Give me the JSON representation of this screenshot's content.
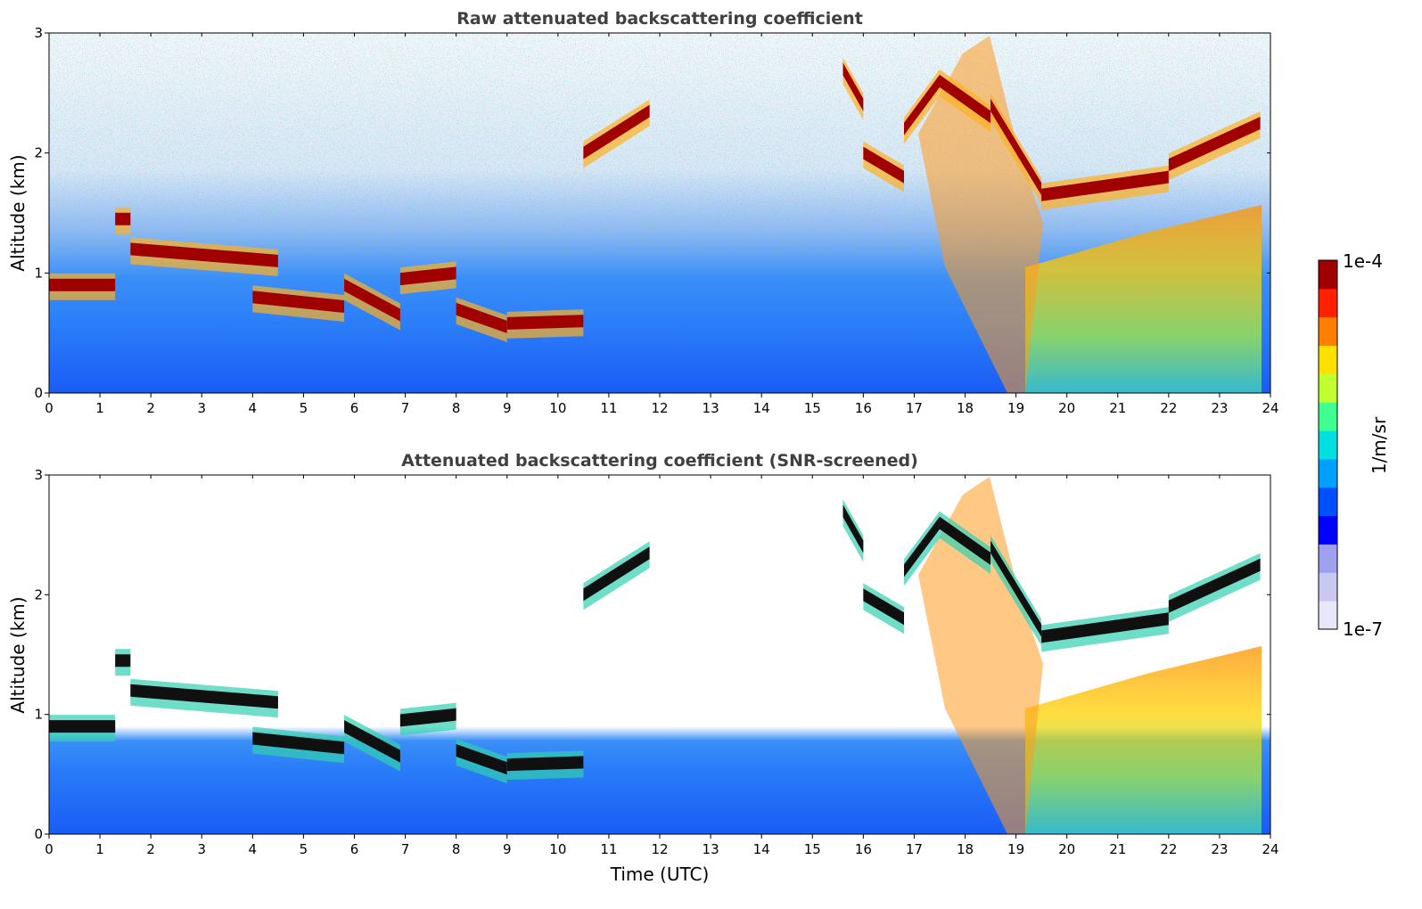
{
  "chart_data": [
    {
      "type": "heatmap",
      "title": "Raw attenuated backscattering coefficient",
      "xlabel": "",
      "ylabel": "Altitude (km)",
      "xlim": [
        0,
        24
      ],
      "ylim": [
        0,
        3
      ],
      "xticks": [
        "0",
        "1",
        "2",
        "3",
        "4",
        "5",
        "6",
        "7",
        "8",
        "9",
        "10",
        "11",
        "12",
        "13",
        "14",
        "15",
        "16",
        "17",
        "18",
        "19",
        "20",
        "21",
        "22",
        "23",
        "24"
      ],
      "yticks": [
        "0",
        "1",
        "2",
        "3"
      ],
      "screened": false,
      "layers": [
        {
          "x_start": 0.0,
          "x_end": 1.3,
          "altitude": [
            0.9,
            0.9
          ]
        },
        {
          "x_start": 1.3,
          "x_end": 1.6,
          "altitude": [
            1.45,
            1.45
          ]
        },
        {
          "x_start": 1.6,
          "x_end": 4.5,
          "altitude": [
            1.2,
            1.1
          ]
        },
        {
          "x_start": 4.0,
          "x_end": 5.8,
          "altitude": [
            0.8,
            0.72
          ]
        },
        {
          "x_start": 5.8,
          "x_end": 6.9,
          "altitude": [
            0.9,
            0.65
          ]
        },
        {
          "x_start": 6.9,
          "x_end": 8.0,
          "altitude": [
            0.95,
            1.0
          ]
        },
        {
          "x_start": 8.0,
          "x_end": 9.0,
          "altitude": [
            0.7,
            0.55
          ]
        },
        {
          "x_start": 9.0,
          "x_end": 10.5,
          "altitude": [
            0.58,
            0.6
          ]
        },
        {
          "x_start": 10.5,
          "x_end": 11.8,
          "altitude": [
            2.0,
            2.35
          ]
        },
        {
          "x_start": 15.6,
          "x_end": 16.0,
          "altitude": [
            2.7,
            2.4
          ]
        },
        {
          "x_start": 16.0,
          "x_end": 16.8,
          "altitude": [
            2.0,
            1.8
          ]
        },
        {
          "x_start": 16.8,
          "x_end": 17.5,
          "altitude": [
            2.2,
            2.6
          ]
        },
        {
          "x_start": 17.5,
          "x_end": 18.5,
          "altitude": [
            2.6,
            2.3
          ]
        },
        {
          "x_start": 18.5,
          "x_end": 19.5,
          "altitude": [
            2.4,
            1.7
          ]
        },
        {
          "x_start": 19.5,
          "x_end": 22.0,
          "altitude": [
            1.65,
            1.8
          ]
        },
        {
          "x_start": 22.0,
          "x_end": 23.8,
          "altitude": [
            1.9,
            2.25
          ]
        }
      ]
    },
    {
      "type": "heatmap",
      "title": "Attenuated backscattering coefficient (SNR-screened)",
      "xlabel": "Time (UTC)",
      "ylabel": "Altitude (km)",
      "xlim": [
        0,
        24
      ],
      "ylim": [
        0,
        3
      ],
      "xticks": [
        "0",
        "1",
        "2",
        "3",
        "4",
        "5",
        "6",
        "7",
        "8",
        "9",
        "10",
        "11",
        "12",
        "13",
        "14",
        "15",
        "16",
        "17",
        "18",
        "19",
        "20",
        "21",
        "22",
        "23",
        "24"
      ],
      "yticks": [
        "0",
        "1",
        "2",
        "3"
      ],
      "screened": true,
      "layers": [
        {
          "x_start": 0.0,
          "x_end": 1.3,
          "altitude": [
            0.9,
            0.9
          ]
        },
        {
          "x_start": 1.3,
          "x_end": 1.6,
          "altitude": [
            1.45,
            1.45
          ]
        },
        {
          "x_start": 1.6,
          "x_end": 4.5,
          "altitude": [
            1.2,
            1.1
          ]
        },
        {
          "x_start": 4.0,
          "x_end": 5.8,
          "altitude": [
            0.8,
            0.72
          ]
        },
        {
          "x_start": 5.8,
          "x_end": 6.9,
          "altitude": [
            0.9,
            0.65
          ]
        },
        {
          "x_start": 6.9,
          "x_end": 8.0,
          "altitude": [
            0.95,
            1.0
          ]
        },
        {
          "x_start": 8.0,
          "x_end": 9.0,
          "altitude": [
            0.7,
            0.55
          ]
        },
        {
          "x_start": 9.0,
          "x_end": 10.5,
          "altitude": [
            0.58,
            0.6
          ]
        },
        {
          "x_start": 10.5,
          "x_end": 11.8,
          "altitude": [
            2.0,
            2.35
          ]
        },
        {
          "x_start": 15.6,
          "x_end": 16.0,
          "altitude": [
            2.7,
            2.4
          ]
        },
        {
          "x_start": 16.0,
          "x_end": 16.8,
          "altitude": [
            2.0,
            1.8
          ]
        },
        {
          "x_start": 16.8,
          "x_end": 17.5,
          "altitude": [
            2.2,
            2.6
          ]
        },
        {
          "x_start": 17.5,
          "x_end": 18.5,
          "altitude": [
            2.6,
            2.3
          ]
        },
        {
          "x_start": 18.5,
          "x_end": 19.5,
          "altitude": [
            2.4,
            1.7
          ]
        },
        {
          "x_start": 19.5,
          "x_end": 22.0,
          "altitude": [
            1.65,
            1.8
          ]
        },
        {
          "x_start": 22.0,
          "x_end": 23.8,
          "altitude": [
            1.9,
            2.25
          ]
        }
      ]
    }
  ],
  "colorbar": {
    "label": "1/m/sr",
    "max_label": "1e-4",
    "min_label": "1e-7",
    "colors": [
      "#e8e8f8",
      "#c8c8f0",
      "#a0a0f0",
      "#0000ff",
      "#0050ff",
      "#00a0ff",
      "#00e0e0",
      "#40ff90",
      "#c0ff30",
      "#ffe000",
      "#ff8000",
      "#ff2000",
      "#a00000"
    ]
  }
}
